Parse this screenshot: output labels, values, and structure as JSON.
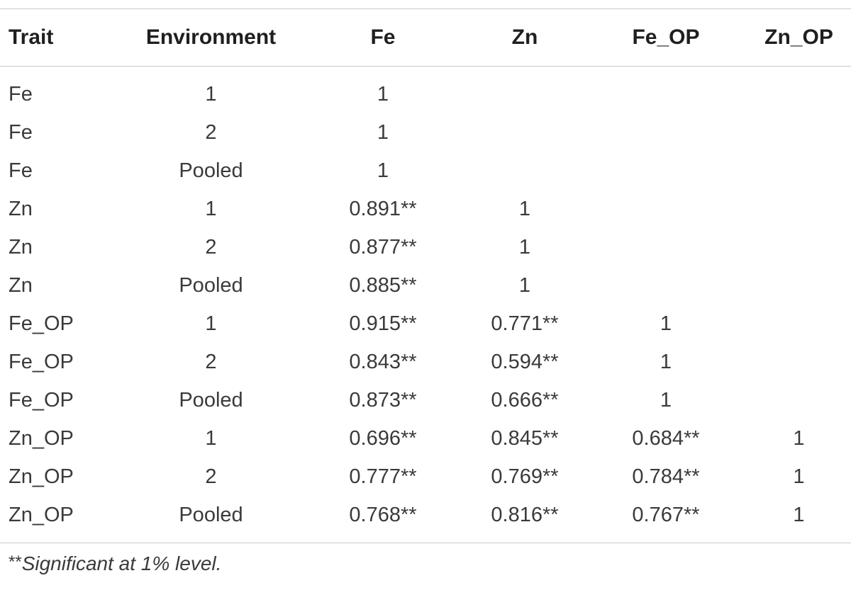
{
  "table": {
    "headers": [
      "Trait",
      "Environment",
      "Fe",
      "Zn",
      "Fe_OP",
      "Zn_OP"
    ],
    "rows": [
      [
        "Fe",
        "1",
        "1",
        "",
        "",
        ""
      ],
      [
        "Fe",
        "2",
        "1",
        "",
        "",
        ""
      ],
      [
        "Fe",
        "Pooled",
        "1",
        "",
        "",
        ""
      ],
      [
        "Zn",
        "1",
        "0.891**",
        "1",
        "",
        ""
      ],
      [
        "Zn",
        "2",
        "0.877**",
        "1",
        "",
        ""
      ],
      [
        "Zn",
        "Pooled",
        "0.885**",
        "1",
        "",
        ""
      ],
      [
        "Fe_OP",
        "1",
        "0.915**",
        "0.771**",
        "1",
        ""
      ],
      [
        "Fe_OP",
        "2",
        "0.843**",
        "0.594**",
        "1",
        ""
      ],
      [
        "Fe_OP",
        "Pooled",
        "0.873**",
        "0.666**",
        "1",
        ""
      ],
      [
        "Zn_OP",
        "1",
        "0.696**",
        "0.845**",
        "0.684**",
        "1"
      ],
      [
        "Zn_OP",
        "2",
        "0.777**",
        "0.769**",
        "0.784**",
        "1"
      ],
      [
        "Zn_OP",
        "Pooled",
        "0.768**",
        "0.816**",
        "0.767**",
        "1"
      ]
    ]
  },
  "footnote": {
    "mark": "**",
    "text": "Significant at 1% level."
  }
}
